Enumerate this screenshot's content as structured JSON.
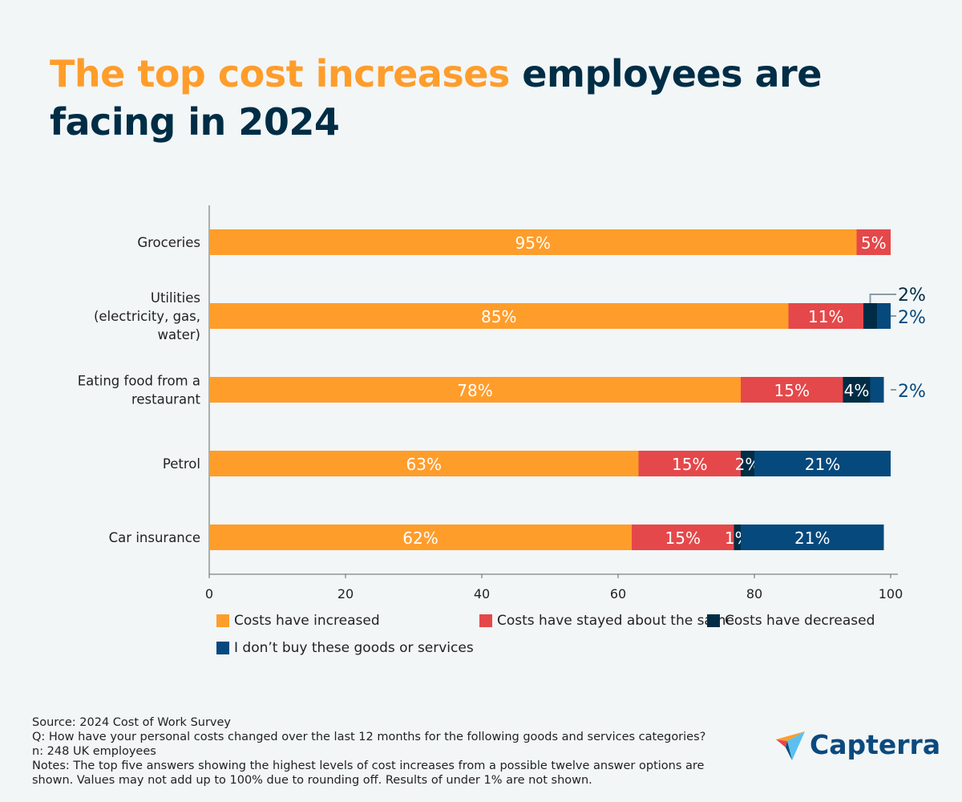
{
  "title": {
    "highlight": "The top cost increases",
    "rest": " employees are facing in 2024"
  },
  "chart_data": {
    "type": "bar",
    "orientation": "horizontal",
    "stacked": true,
    "categories": [
      [
        "Groceries"
      ],
      [
        "Utilities",
        "(electricity, gas,",
        "water)"
      ],
      [
        "Eating food from a",
        "restaurant"
      ],
      [
        "Petrol"
      ],
      [
        "Car insurance"
      ]
    ],
    "series": [
      {
        "name": "Costs have increased",
        "color": "#ff9d2b",
        "values": [
          95,
          85,
          78,
          63,
          62
        ]
      },
      {
        "name": "Costs have stayed about the same",
        "color": "#e5484a",
        "values": [
          5,
          11,
          15,
          15,
          15
        ]
      },
      {
        "name": "Costs have decreased",
        "color": "#002d45",
        "values": [
          0,
          2,
          4,
          2,
          1
        ]
      },
      {
        "name": "I don’t buy these goods or services",
        "color": "#06497d",
        "values": [
          0,
          2,
          2,
          21,
          21
        ]
      }
    ],
    "xlim": [
      0,
      100
    ],
    "xticks": [
      0,
      20,
      40,
      60,
      80,
      100
    ],
    "data_label_suffix": "%",
    "legend_position": "bottom",
    "grid": false
  },
  "footer": {
    "lines": [
      "Source: 2024 Cost of Work Survey",
      "Q: How have your personal costs changed over the last 12 months for the following goods and services categories?",
      "n: 248 UK employees",
      "Notes: The top five answers showing the highest levels of cost increases from a possible twelve answer options are shown. Values may not add up to 100% due to rounding off. Results of under 1% are not shown."
    ]
  },
  "logo": {
    "text": "Capterra"
  }
}
